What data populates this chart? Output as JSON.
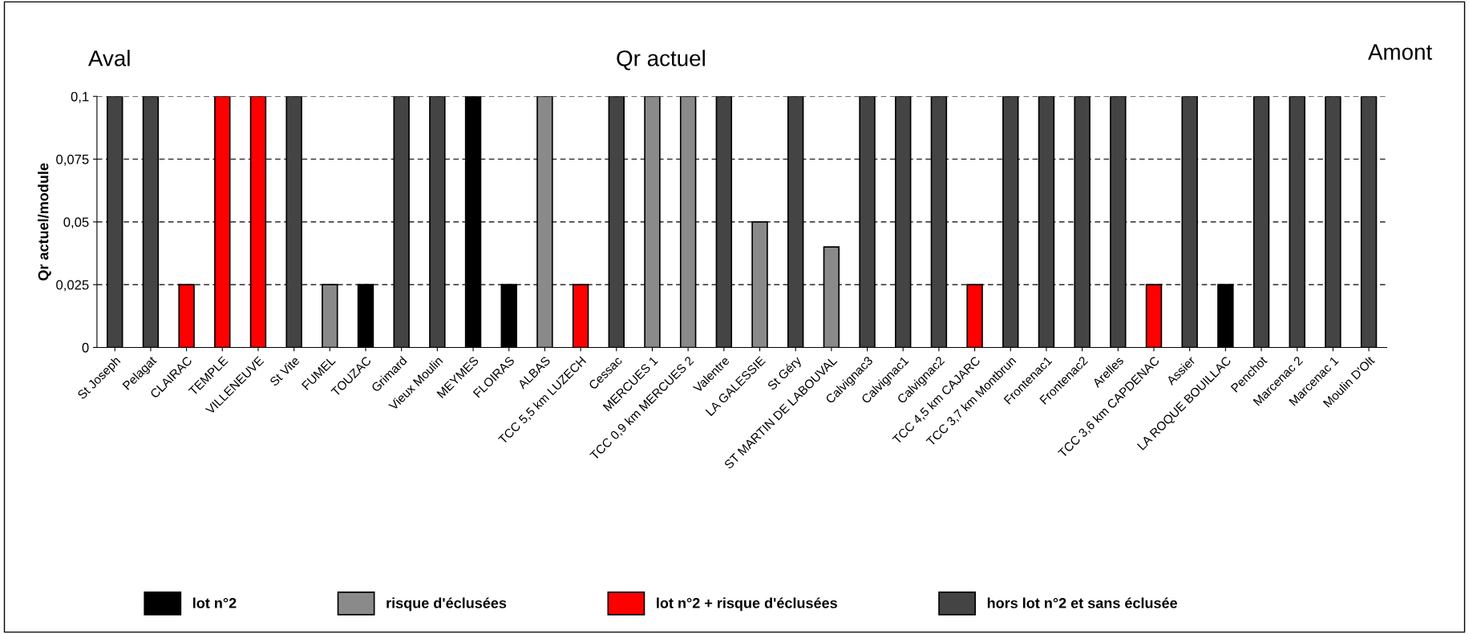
{
  "chart_data": {
    "type": "bar",
    "title": "Qr actuel",
    "ylabel": "Qr actuel/module",
    "annotations": [
      "Aval",
      "Amont"
    ],
    "categories": [
      "St Joseph",
      "Pelagat",
      "CLAIRAC",
      "TEMPLE",
      "VILLENEUVE",
      "St Vite",
      "FUMEL",
      "TOUZAC",
      "Grimard",
      "Vieux Moulin",
      "MEYMES",
      "FLOIRAS",
      "ALBAS",
      "TCC 5,5 km LUZECH",
      "Cessac",
      "MERCUES 1",
      "TCC 0,9 km MERCUES 2",
      "Valentre",
      "LA GALESSIE",
      "St Géry",
      "ST MARTIN DE LABOUVAL",
      "Calvignac3",
      "Calvignac1",
      "Calvignac2",
      "TCC 4,5 km CAJARC",
      "TCC 3,7 km Montbrun",
      "Frontenac1",
      "Frontenac2",
      "Arelles",
      "TCC 3,6 km CAPDENAC",
      "Assier",
      "LA ROQUE BOUILLAC",
      "Penchot",
      "Marcenac 2",
      "Marcenac 1",
      "Moulin D'Olt"
    ],
    "series": [
      {
        "name": "lot n°2",
        "color": "#000000",
        "values": [
          null,
          null,
          null,
          null,
          null,
          null,
          null,
          0.025,
          null,
          null,
          0.1,
          0.025,
          null,
          null,
          null,
          null,
          null,
          null,
          null,
          null,
          null,
          null,
          null,
          null,
          null,
          null,
          null,
          null,
          null,
          null,
          null,
          0.025,
          null,
          null,
          null,
          null
        ]
      },
      {
        "name": "risque d'éclusées",
        "color": "#8a8a8a",
        "values": [
          null,
          null,
          null,
          null,
          null,
          null,
          0.025,
          null,
          null,
          null,
          null,
          null,
          0.1,
          null,
          null,
          0.1,
          0.1,
          null,
          0.05,
          null,
          0.04,
          null,
          null,
          null,
          null,
          null,
          null,
          null,
          null,
          null,
          null,
          null,
          null,
          null,
          null,
          null
        ]
      },
      {
        "name": "lot n°2 + risque d'éclusées",
        "color": "#ff0000",
        "values": [
          null,
          null,
          0.025,
          0.1,
          0.1,
          null,
          null,
          null,
          null,
          null,
          null,
          null,
          null,
          0.025,
          null,
          null,
          null,
          null,
          null,
          null,
          null,
          null,
          null,
          null,
          0.025,
          null,
          null,
          null,
          null,
          0.025,
          null,
          null,
          null,
          null,
          null,
          null
        ]
      },
      {
        "name": "hors lot n°2 et sans éclusée",
        "color": "#444444",
        "values": [
          0.1,
          0.1,
          null,
          null,
          null,
          0.1,
          null,
          null,
          0.1,
          0.1,
          null,
          null,
          null,
          null,
          0.1,
          null,
          null,
          0.1,
          null,
          0.1,
          null,
          0.1,
          0.1,
          0.1,
          null,
          0.1,
          0.1,
          0.1,
          0.1,
          null,
          0.1,
          null,
          0.1,
          0.1,
          0.1,
          0.1
        ]
      }
    ],
    "ylim": [
      0,
      0.1
    ],
    "yticks": [
      0,
      {
        "value": 0.025,
        "label": "0,025"
      },
      {
        "value": 0.05,
        "label": "0,05"
      },
      {
        "value": 0.075,
        "label": "0,075"
      },
      {
        "value": 0.1,
        "label": "0,1"
      }
    ],
    "grid": "y",
    "line_style": "dashed",
    "legend": "bottom"
  }
}
